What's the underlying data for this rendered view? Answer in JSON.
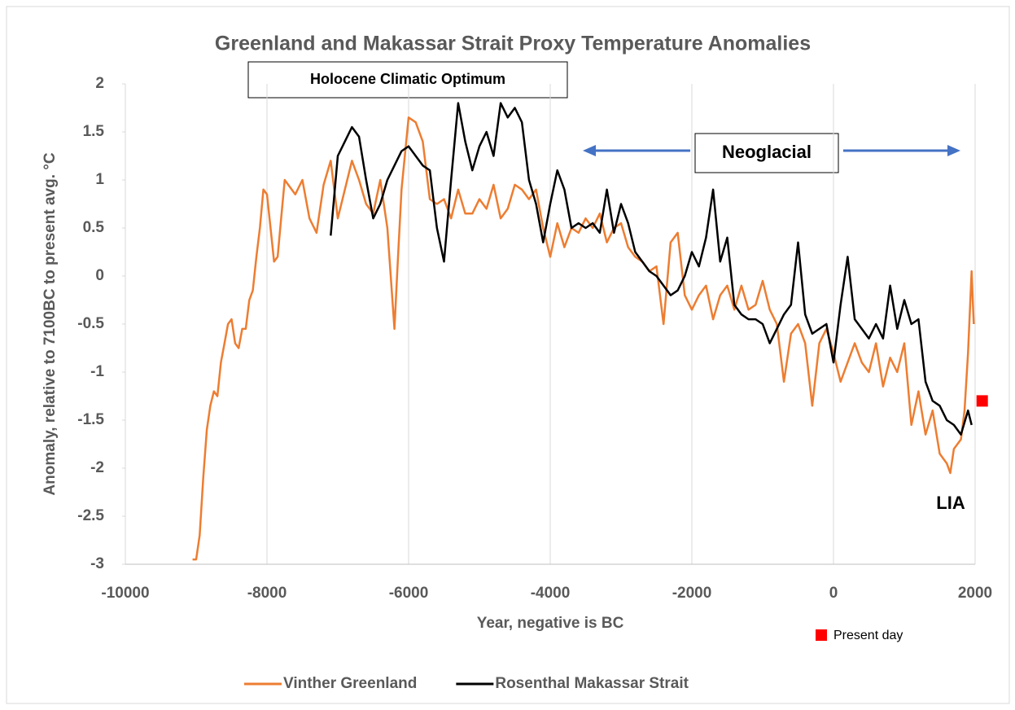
{
  "chart_data": {
    "type": "line",
    "title": "Greenland and Makassar Strait Proxy Temperature Anomalies",
    "xlabel": "Year, negative is BC",
    "ylabel": "Anomaly, relative to 7100BC to present avg. °C",
    "xlim": [
      -10000,
      2000
    ],
    "xticks": [
      -10000,
      -8000,
      -6000,
      -4000,
      -2000,
      0,
      2000
    ],
    "ylim": [
      -3,
      2
    ],
    "yticks": [
      -3,
      -2.5,
      -2,
      -1.5,
      -1,
      -0.5,
      0,
      0.5,
      1,
      1.5,
      2
    ],
    "grid": "x",
    "legend": "bottom",
    "annotations": [
      "Holocene Climatic Optimum",
      "Neoglacial",
      "LIA"
    ],
    "series": [
      {
        "name": "Vinther Greenland",
        "color": "#ed7d31",
        "x": [
          -9050,
          -9000,
          -8950,
          -8900,
          -8850,
          -8800,
          -8750,
          -8700,
          -8650,
          -8600,
          -8550,
          -8500,
          -8450,
          -8400,
          -8350,
          -8300,
          -8250,
          -8200,
          -8150,
          -8100,
          -8050,
          -8000,
          -7950,
          -7900,
          -7850,
          -7800,
          -7750,
          -7700,
          -7600,
          -7500,
          -7400,
          -7300,
          -7200,
          -7100,
          -7000,
          -6900,
          -6800,
          -6700,
          -6600,
          -6500,
          -6400,
          -6300,
          -6200,
          -6150,
          -6100,
          -6000,
          -5900,
          -5800,
          -5700,
          -5600,
          -5500,
          -5400,
          -5300,
          -5200,
          -5100,
          -5000,
          -4900,
          -4800,
          -4700,
          -4600,
          -4500,
          -4400,
          -4300,
          -4200,
          -4100,
          -4000,
          -3900,
          -3800,
          -3700,
          -3600,
          -3500,
          -3400,
          -3300,
          -3200,
          -3100,
          -3000,
          -2900,
          -2800,
          -2700,
          -2600,
          -2500,
          -2400,
          -2300,
          -2200,
          -2100,
          -2000,
          -1900,
          -1800,
          -1700,
          -1600,
          -1500,
          -1400,
          -1300,
          -1200,
          -1100,
          -1000,
          -900,
          -800,
          -700,
          -600,
          -500,
          -400,
          -300,
          -200,
          -100,
          0,
          100,
          200,
          300,
          400,
          500,
          600,
          700,
          800,
          900,
          1000,
          1100,
          1200,
          1300,
          1400,
          1500,
          1600,
          1650,
          1700,
          1800,
          1850,
          1900,
          1950,
          1980
        ],
        "values": [
          -2.95,
          -2.95,
          -2.7,
          -2.1,
          -1.6,
          -1.35,
          -1.2,
          -1.25,
          -0.9,
          -0.7,
          -0.5,
          -0.45,
          -0.7,
          -0.75,
          -0.55,
          -0.55,
          -0.25,
          -0.15,
          0.2,
          0.5,
          0.9,
          0.85,
          0.5,
          0.15,
          0.2,
          0.6,
          1.0,
          0.95,
          0.85,
          1.0,
          0.6,
          0.45,
          0.95,
          1.2,
          0.6,
          0.9,
          1.2,
          1.0,
          0.75,
          0.65,
          1.0,
          0.5,
          -0.55,
          0.2,
          0.9,
          1.65,
          1.6,
          1.4,
          0.8,
          0.75,
          0.8,
          0.6,
          0.9,
          0.65,
          0.65,
          0.8,
          0.7,
          0.95,
          0.6,
          0.7,
          0.95,
          0.9,
          0.8,
          0.9,
          0.5,
          0.2,
          0.55,
          0.3,
          0.5,
          0.45,
          0.6,
          0.5,
          0.65,
          0.35,
          0.5,
          0.55,
          0.3,
          0.2,
          0.15,
          0.05,
          0.1,
          -0.5,
          0.35,
          0.45,
          -0.2,
          -0.35,
          -0.2,
          -0.1,
          -0.45,
          -0.2,
          -0.1,
          -0.35,
          -0.1,
          -0.35,
          -0.3,
          -0.05,
          -0.35,
          -0.5,
          -1.1,
          -0.6,
          -0.5,
          -0.7,
          -1.35,
          -0.7,
          -0.55,
          -0.8,
          -1.1,
          -0.9,
          -0.7,
          -0.9,
          -1.0,
          -0.7,
          -1.15,
          -0.85,
          -1.0,
          -0.7,
          -1.55,
          -1.2,
          -1.65,
          -1.4,
          -1.85,
          -1.95,
          -2.05,
          -1.8,
          -1.7,
          -1.4,
          -0.8,
          0.05,
          -0.5
        ]
      },
      {
        "name": "Rosenthal Makassar Strait",
        "color": "#000000",
        "x": [
          -7100,
          -7000,
          -6900,
          -6800,
          -6700,
          -6600,
          -6500,
          -6400,
          -6300,
          -6200,
          -6100,
          -6000,
          -5900,
          -5800,
          -5700,
          -5600,
          -5500,
          -5400,
          -5300,
          -5200,
          -5100,
          -5000,
          -4900,
          -4800,
          -4700,
          -4600,
          -4500,
          -4400,
          -4300,
          -4200,
          -4100,
          -4000,
          -3900,
          -3800,
          -3700,
          -3600,
          -3500,
          -3400,
          -3300,
          -3200,
          -3100,
          -3000,
          -2900,
          -2800,
          -2700,
          -2600,
          -2500,
          -2400,
          -2300,
          -2200,
          -2100,
          -2000,
          -1900,
          -1800,
          -1700,
          -1600,
          -1500,
          -1400,
          -1300,
          -1200,
          -1100,
          -1000,
          -900,
          -800,
          -700,
          -600,
          -500,
          -400,
          -300,
          -200,
          -100,
          0,
          100,
          200,
          300,
          400,
          500,
          600,
          700,
          800,
          900,
          1000,
          1100,
          1200,
          1300,
          1400,
          1500,
          1600,
          1700,
          1800,
          1900,
          1950
        ],
        "values": [
          0.42,
          1.25,
          1.4,
          1.55,
          1.45,
          1.0,
          0.6,
          0.75,
          1.0,
          1.15,
          1.3,
          1.35,
          1.25,
          1.15,
          1.1,
          0.5,
          0.15,
          1.0,
          1.8,
          1.4,
          1.1,
          1.35,
          1.5,
          1.25,
          1.8,
          1.65,
          1.75,
          1.6,
          1.0,
          0.75,
          0.35,
          0.75,
          1.1,
          0.9,
          0.5,
          0.55,
          0.5,
          0.55,
          0.45,
          0.9,
          0.45,
          0.75,
          0.55,
          0.25,
          0.15,
          0.05,
          0.0,
          -0.1,
          -0.2,
          -0.15,
          0.0,
          0.25,
          0.1,
          0.4,
          0.9,
          0.15,
          0.4,
          -0.3,
          -0.4,
          -0.45,
          -0.45,
          -0.5,
          -0.7,
          -0.55,
          -0.4,
          -0.3,
          0.35,
          -0.4,
          -0.6,
          -0.55,
          -0.5,
          -0.9,
          -0.3,
          0.2,
          -0.45,
          -0.55,
          -0.65,
          -0.5,
          -0.65,
          -0.1,
          -0.55,
          -0.25,
          -0.5,
          -0.45,
          -1.1,
          -1.3,
          -1.35,
          -1.5,
          -1.55,
          -1.65,
          -1.4,
          -1.55
        ]
      },
      {
        "name": "Present day",
        "color": "#ff0000",
        "marker": "square",
        "x": [
          2100
        ],
        "values": [
          -1.3
        ]
      }
    ]
  }
}
